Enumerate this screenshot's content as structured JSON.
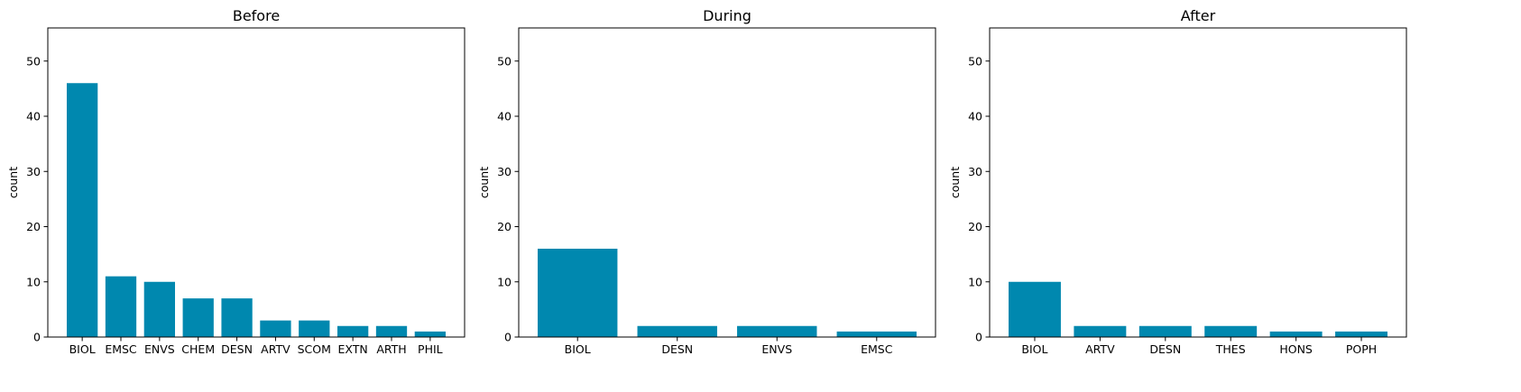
{
  "chart_data": [
    {
      "type": "bar",
      "title": "Before",
      "xlabel": "",
      "ylabel": "count",
      "ylim": [
        0,
        56
      ],
      "yticks": [
        0,
        10,
        20,
        30,
        40,
        50
      ],
      "grid": false,
      "bar_color": "#0088AF",
      "categories": [
        "BIOL",
        "EMSC",
        "ENVS",
        "CHEM",
        "DESN",
        "ARTV",
        "SCOM",
        "EXTN",
        "ARTH",
        "PHIL"
      ],
      "values": [
        46,
        11,
        10,
        7,
        7,
        3,
        3,
        2,
        2,
        1
      ]
    },
    {
      "type": "bar",
      "title": "During",
      "xlabel": "",
      "ylabel": "count",
      "ylim": [
        0,
        56
      ],
      "yticks": [
        0,
        10,
        20,
        30,
        40,
        50
      ],
      "grid": false,
      "bar_color": "#0088AF",
      "categories": [
        "BIOL",
        "DESN",
        "ENVS",
        "EMSC"
      ],
      "values": [
        16,
        2,
        2,
        1
      ]
    },
    {
      "type": "bar",
      "title": "After",
      "xlabel": "",
      "ylabel": "count",
      "ylim": [
        0,
        56
      ],
      "yticks": [
        0,
        10,
        20,
        30,
        40,
        50
      ],
      "grid": false,
      "bar_color": "#0088AF",
      "categories": [
        "BIOL",
        "ARTV",
        "DESN",
        "THES",
        "HONS",
        "POPH"
      ],
      "values": [
        10,
        2,
        2,
        2,
        1,
        1
      ]
    }
  ]
}
